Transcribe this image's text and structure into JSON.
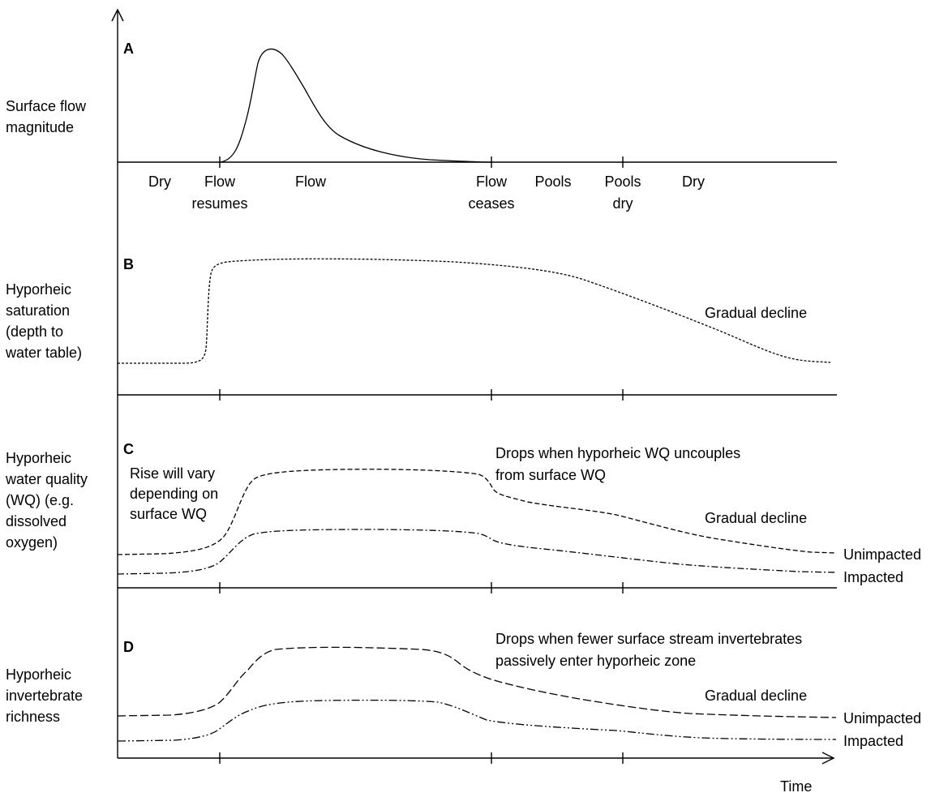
{
  "panels": [
    {
      "letter": "A",
      "ylabel": [
        "Surface flow",
        "magnitude"
      ],
      "stages": [
        "Dry",
        "Flow resumes",
        "Flow",
        "Flow ceases",
        "Pools",
        "Pools dry",
        "Dry"
      ]
    },
    {
      "letter": "B",
      "ylabel": [
        "Hyporheic",
        "saturation",
        "(depth to",
        "water table)"
      ],
      "annotations": [
        "Gradual decline"
      ]
    },
    {
      "letter": "C",
      "ylabel": [
        "Hyporheic",
        "water quality",
        "(WQ) (e.g.",
        "dissolved",
        "oxygen)"
      ],
      "annotations": [
        "Rise will vary depending on surface WQ",
        "Drops when hyporheic WQ uncouples from surface WQ",
        "Gradual decline"
      ],
      "series": [
        "Unimpacted",
        "Impacted"
      ]
    },
    {
      "letter": "D",
      "ylabel": [
        "Hyporheic",
        "invertebrate",
        "richness"
      ],
      "annotations": [
        "Drops when fewer surface stream invertebrates passively enter hyporheic zone",
        "Gradual decline"
      ],
      "series": [
        "Unimpacted",
        "Impacted"
      ]
    }
  ],
  "stage_lines": {
    "dry1": "Dry",
    "resumes_1": "Flow",
    "resumes_2": "resumes",
    "flow": "Flow",
    "ceases_1": "Flow",
    "ceases_2": "ceases",
    "pools": "Pools",
    "pools_dry_1": "Pools",
    "pools_dry_2": "dry",
    "dry2": "Dry"
  },
  "ann_lines": {
    "c_rise_1": "Rise will vary",
    "c_rise_2": "depending on",
    "c_rise_3": "surface WQ",
    "c_drop_1": "Drops when hyporheic WQ uncouples",
    "c_drop_2": "from surface WQ",
    "d_drop_1": "Drops when fewer surface stream invertebrates",
    "d_drop_2": "passively enter hyporheic zone"
  },
  "xlabel": "Time"
}
